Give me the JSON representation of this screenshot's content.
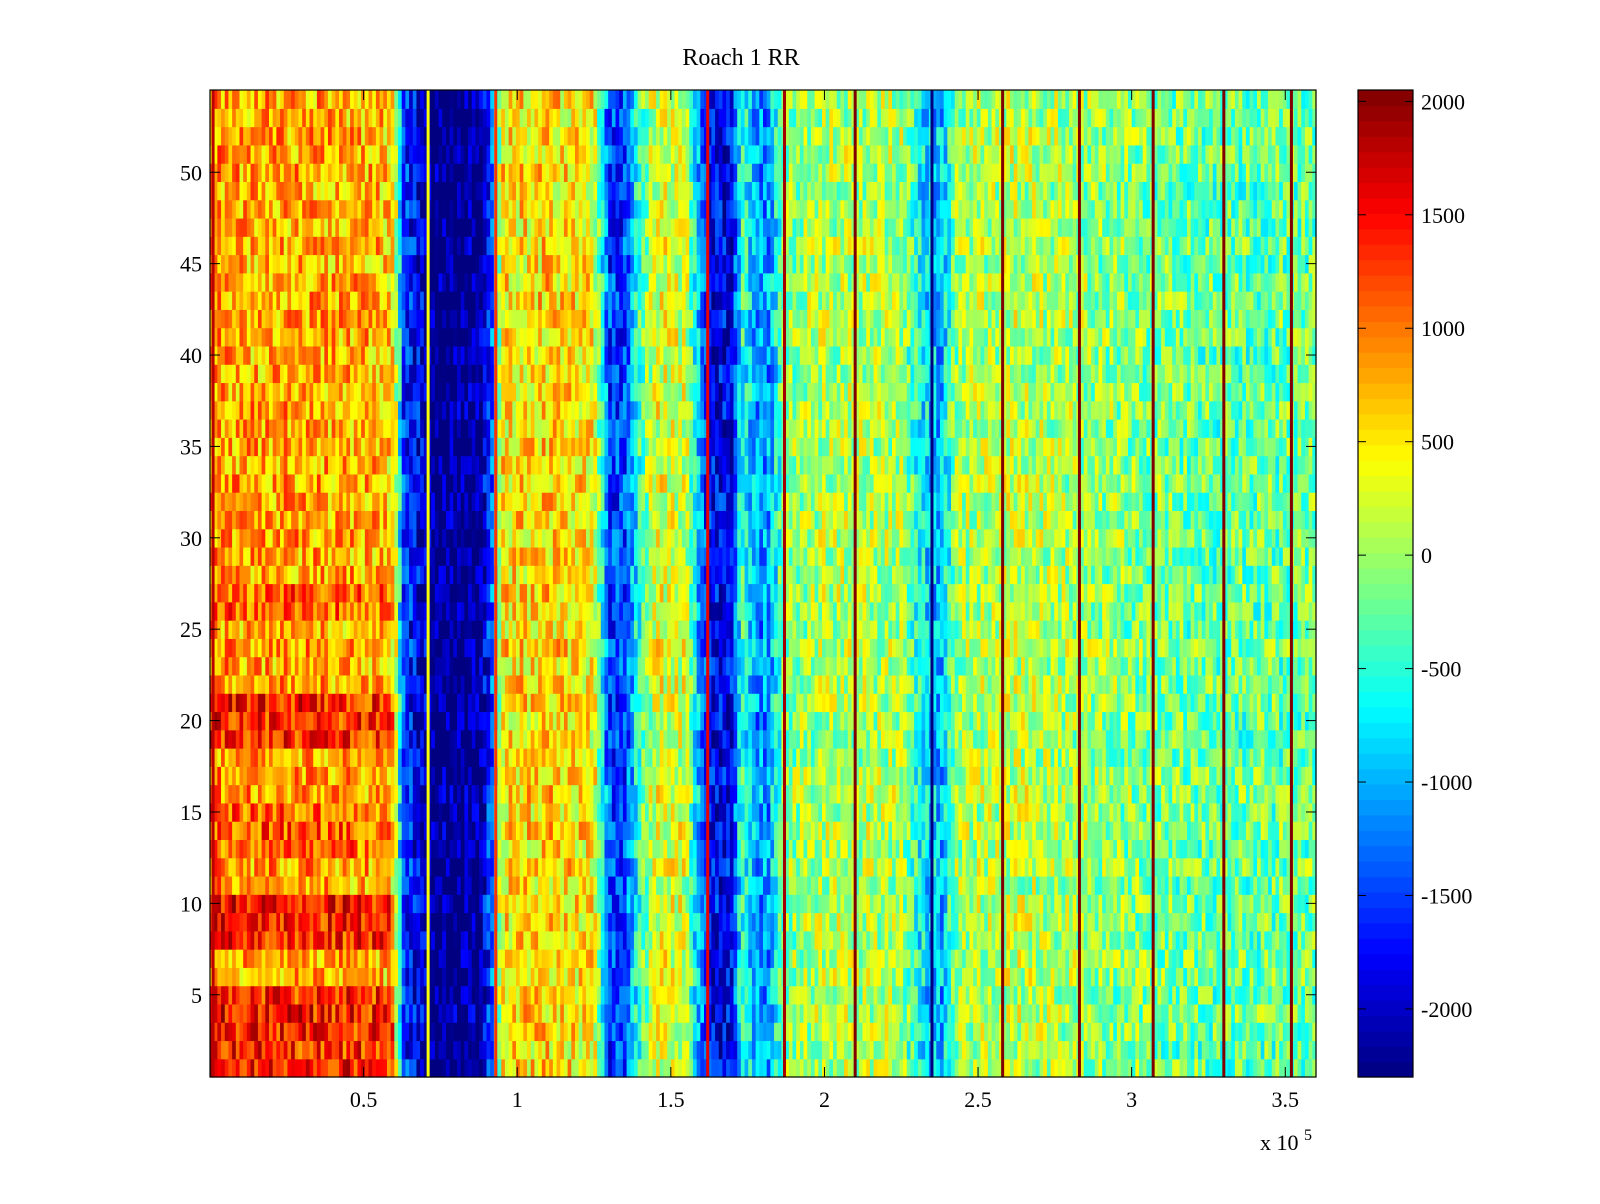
{
  "chart_data": {
    "type": "heatmap",
    "title": "Roach 1 RR",
    "xlabel": "",
    "ylabel": "",
    "x_multiplier_label": "x 10",
    "x_multiplier_exponent": "5",
    "xlim": [
      0,
      360000
    ],
    "ylim": [
      0.5,
      54.5
    ],
    "x_ticks": [
      50000,
      100000,
      150000,
      200000,
      250000,
      300000,
      350000
    ],
    "x_tick_labels": [
      "0.5",
      "1",
      "1.5",
      "2",
      "2.5",
      "3",
      "3.5"
    ],
    "y_ticks": [
      5,
      10,
      15,
      20,
      25,
      30,
      35,
      40,
      45,
      50
    ],
    "y_tick_labels": [
      "5",
      "10",
      "15",
      "20",
      "25",
      "30",
      "35",
      "40",
      "45",
      "50"
    ],
    "rows": 54,
    "colorbar": {
      "colormap": "jet",
      "clim": [
        -2300,
        2050
      ],
      "ticks": [
        2000,
        1500,
        1000,
        500,
        0,
        -500,
        -1000,
        -1500,
        -2000
      ],
      "tick_labels": [
        "2000",
        "1500",
        "1000",
        "500",
        "0",
        "-500",
        "-1000",
        "-1500",
        "-2000"
      ]
    },
    "column_profile": [
      {
        "x": 0,
        "value": 900
      },
      {
        "x": 10000,
        "value": 800
      },
      {
        "x": 30000,
        "value": 800
      },
      {
        "x": 55000,
        "value": 750
      },
      {
        "x": 60000,
        "value": 500
      },
      {
        "x": 63000,
        "value": -1500
      },
      {
        "x": 70000,
        "value": -2000
      },
      {
        "x": 72000,
        "value": -2300
      },
      {
        "x": 88000,
        "value": -2200
      },
      {
        "x": 92000,
        "value": -1300
      },
      {
        "x": 95000,
        "value": 500
      },
      {
        "x": 110000,
        "value": 600
      },
      {
        "x": 125000,
        "value": 450
      },
      {
        "x": 130000,
        "value": -1500
      },
      {
        "x": 135000,
        "value": -1500
      },
      {
        "x": 140000,
        "value": -400
      },
      {
        "x": 145000,
        "value": 300
      },
      {
        "x": 155000,
        "value": 200
      },
      {
        "x": 160000,
        "value": -1200
      },
      {
        "x": 163000,
        "value": -1800
      },
      {
        "x": 170000,
        "value": -1800
      },
      {
        "x": 173000,
        "value": -400
      },
      {
        "x": 178000,
        "value": -1100
      },
      {
        "x": 182000,
        "value": -1100
      },
      {
        "x": 187000,
        "value": -100
      },
      {
        "x": 200000,
        "value": 100
      },
      {
        "x": 225000,
        "value": 50
      },
      {
        "x": 232000,
        "value": -700
      },
      {
        "x": 238000,
        "value": -1000
      },
      {
        "x": 243000,
        "value": 0
      },
      {
        "x": 260000,
        "value": 150
      },
      {
        "x": 300000,
        "value": -100
      },
      {
        "x": 330000,
        "value": -250
      },
      {
        "x": 360000,
        "value": -200
      }
    ],
    "row_offsets": [
      {
        "rows": [
          1,
          2,
          3,
          4,
          5,
          8,
          9,
          10,
          19,
          20,
          21
        ],
        "x_to": 60000,
        "offset": 600
      },
      {
        "rows": [
          13,
          14,
          15,
          26,
          27
        ],
        "x_to": 60000,
        "offset": 300
      }
    ],
    "stripe_lines": [
      {
        "x": 1000,
        "value": 1800
      },
      {
        "x": 71000,
        "value": 400
      },
      {
        "x": 93000,
        "value": 1300
      },
      {
        "x": 162000,
        "value": 1600
      },
      {
        "x": 187000,
        "value": 1900
      },
      {
        "x": 210000,
        "value": 2050
      },
      {
        "x": 235000,
        "value": -2300
      },
      {
        "x": 258000,
        "value": 2050
      },
      {
        "x": 283000,
        "value": 2050
      },
      {
        "x": 307000,
        "value": 2050
      },
      {
        "x": 330000,
        "value": 2050
      },
      {
        "x": 352000,
        "value": 2050
      }
    ]
  }
}
